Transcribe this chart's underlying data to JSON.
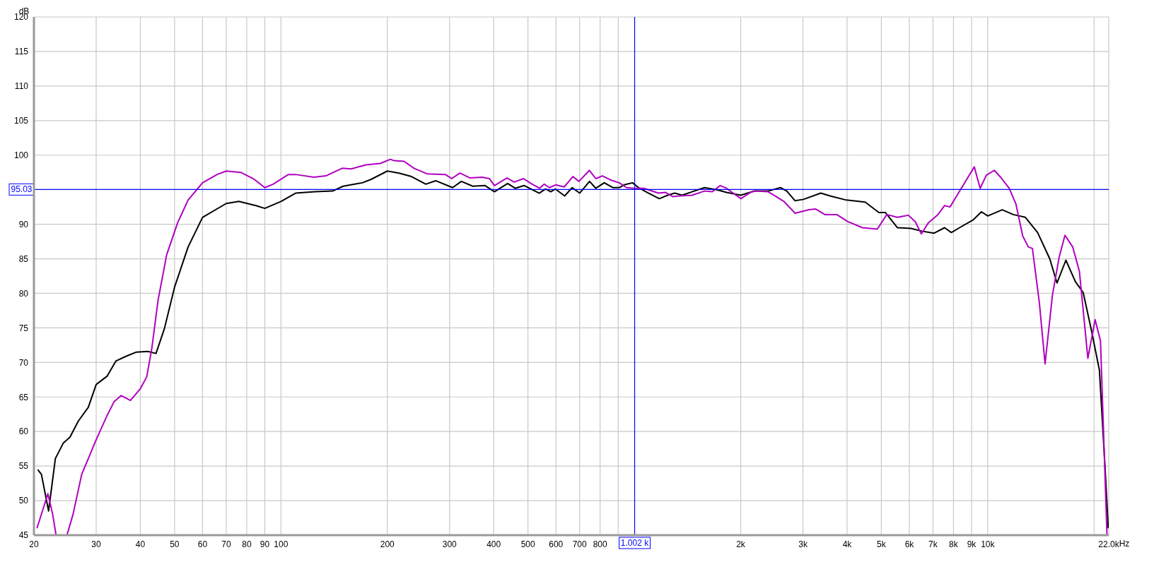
{
  "chart_data": {
    "type": "line",
    "xlabel": "Hz",
    "ylabel": "dB",
    "log": "x",
    "grid": true,
    "xlim": [
      20,
      22000
    ],
    "ylim": [
      45,
      120
    ],
    "xticks": [
      20,
      30,
      40,
      50,
      60,
      70,
      80,
      90,
      100,
      200,
      300,
      400,
      500,
      600,
      700,
      800,
      {
        "value": 900,
        "label": null
      },
      {
        "value": 2000,
        "label": "2k"
      },
      {
        "value": 3000,
        "label": "3k"
      },
      {
        "value": 4000,
        "label": "4k"
      },
      {
        "value": 5000,
        "label": "5k"
      },
      {
        "value": 6000,
        "label": "6k"
      },
      {
        "value": 7000,
        "label": "7k"
      },
      {
        "value": 8000,
        "label": "8k"
      },
      {
        "value": 9000,
        "label": "9k"
      },
      {
        "value": 10000,
        "label": "10k"
      },
      {
        "value": 20000,
        "label": null
      },
      {
        "value": 22000,
        "label": "22.0k"
      }
    ],
    "yticks": [
      45,
      50,
      55,
      60,
      65,
      70,
      75,
      80,
      85,
      90,
      100,
      105,
      110,
      115,
      120
    ],
    "ref_lines": [
      {
        "axis": "y",
        "value": 95.03,
        "label": "95.03",
        "color": "#0000ff"
      },
      {
        "axis": "x",
        "value": 1002,
        "label": "1.002 k",
        "color": "#0000ff"
      }
    ],
    "series": [
      {
        "color": "#000000",
        "x": [
          20.5,
          21,
          22,
          23,
          24.2,
          25.3,
          26.7,
          28.5,
          30,
          32.2,
          34.1,
          36.5,
          39,
          42,
          44.3,
          46.8,
          50,
          54.6,
          60,
          70,
          76,
          85,
          90,
          100,
          110,
          125,
          140,
          150,
          170,
          180,
          200,
          216,
          234,
          257,
          274,
          306,
          324,
          349,
          378,
          402,
          438,
          460,
          488,
          538,
          561,
          580,
          598,
          635,
          667,
          700,
          747,
          778,
          822,
          869,
          907,
          936,
          988,
          1034,
          1097,
          1177,
          1243,
          1302,
          1365,
          1457,
          1579,
          1710,
          1823,
          2000,
          2180,
          2390,
          2590,
          2700,
          2850,
          3010,
          3370,
          3580,
          3980,
          4500,
          4920,
          5130,
          5550,
          6060,
          6510,
          7040,
          7550,
          7890,
          8320,
          9080,
          9600,
          10000,
          10990,
          11810,
          12780,
          13840,
          14980,
          15700,
          16640,
          17700,
          18630,
          19640,
          20700,
          21450,
          21930
        ],
        "values": [
          54.5,
          53.8,
          48.5,
          56.1,
          58.3,
          59.2,
          61.5,
          63.5,
          66.8,
          68,
          70.2,
          70.9,
          71.5,
          71.6,
          71.3,
          74.9,
          80.9,
          86.7,
          91,
          93,
          93.3,
          92.7,
          92.3,
          93.3,
          94.5,
          94.7,
          94.8,
          95.5,
          96,
          96.5,
          97.7,
          97.4,
          96.9,
          95.8,
          96.3,
          95.3,
          96.2,
          95.5,
          95.6,
          94.7,
          95.9,
          95.2,
          95.6,
          94.5,
          95.1,
          94.7,
          95.1,
          94.1,
          95.3,
          94.5,
          96.2,
          95.2,
          96,
          95.3,
          95.3,
          95.7,
          96,
          95.2,
          94.5,
          93.7,
          94.2,
          94.5,
          94.2,
          94.7,
          95.3,
          95,
          94.6,
          94.2,
          94.8,
          94.8,
          95.3,
          94.8,
          93.4,
          93.6,
          94.5,
          94.1,
          93.5,
          93.2,
          91.7,
          91.7,
          89.5,
          89.4,
          89,
          88.7,
          89.5,
          88.8,
          89.5,
          90.6,
          91.8,
          91.2,
          92.1,
          91.4,
          91,
          88.8,
          85,
          81.5,
          84.8,
          81.7,
          80.1,
          74.7,
          68.9,
          55.3,
          46
        ]
      },
      {
        "color": "#b000c0",
        "x": [
          20.4,
          21.9,
          22.6,
          23.1,
          24,
          24.8,
          25.8,
          27.3,
          30,
          32.2,
          33.7,
          35.3,
          37.5,
          40,
          41.7,
          43.1,
          44.9,
          47.5,
          51,
          54.6,
          60,
          66,
          70,
          77,
          84,
          90,
          95,
          105,
          110,
          124,
          134,
          149,
          158,
          174,
          191,
          204,
          209,
          223,
          238,
          259,
          292,
          304,
          321,
          343,
          371,
          389,
          402,
          436,
          457,
          486,
          510,
          539,
          556,
          575,
          599,
          633,
          670,
          697,
          746,
          778,
          812,
          857,
          906,
          951,
          998,
          1065,
          1170,
          1226,
          1283,
          1343,
          1457,
          1579,
          1660,
          1750,
          1823,
          2002,
          2130,
          2200,
          2390,
          2520,
          2650,
          2850,
          3120,
          3260,
          3460,
          3740,
          4010,
          4420,
          4870,
          5180,
          5550,
          5960,
          6230,
          6490,
          6790,
          7230,
          7550,
          7820,
          8170,
          9160,
          9520,
          9910,
          10440,
          10920,
          11500,
          12020,
          12560,
          13030,
          13380,
          14000,
          14530,
          15240,
          15920,
          16540,
          17400,
          18170,
          19200,
          20130,
          20850,
          21750
        ],
        "values": [
          46,
          51,
          48,
          45,
          null,
          45,
          48,
          53.8,
          58.8,
          62.3,
          64.3,
          65.2,
          64.5,
          66.2,
          67.9,
          72,
          79,
          85.6,
          90.2,
          93.5,
          96,
          97.2,
          97.7,
          97.5,
          96.5,
          95.3,
          95.8,
          97.2,
          97.2,
          96.8,
          97,
          98.1,
          98,
          98.6,
          98.8,
          99.4,
          99.2,
          99.1,
          98.1,
          97.3,
          97.2,
          96.6,
          97.4,
          96.7,
          96.8,
          96.6,
          95.6,
          96.7,
          96.1,
          96.6,
          95.9,
          95.2,
          95.8,
          95.3,
          95.7,
          95.4,
          96.9,
          96.2,
          97.8,
          96.6,
          97,
          96.4,
          96,
          95.3,
          95.2,
          95.2,
          94.5,
          94.6,
          94,
          94.1,
          94.2,
          94.8,
          94.7,
          95.6,
          95.2,
          93.7,
          94.6,
          94.8,
          94.7,
          94,
          93.3,
          91.6,
          92.1,
          92.2,
          91.4,
          91.4,
          90.4,
          89.5,
          89.3,
          91.4,
          91,
          91.3,
          90.4,
          88.6,
          90.2,
          91.4,
          92.7,
          92.5,
          94.1,
          98.3,
          95.2,
          97.1,
          97.8,
          96.7,
          95.2,
          92.9,
          88.3,
          86.7,
          86.5,
          78.6,
          69.8,
          79.7,
          85.2,
          88.4,
          86.7,
          83.2,
          70.6,
          76.2,
          73.1,
          45
        ]
      }
    ]
  }
}
